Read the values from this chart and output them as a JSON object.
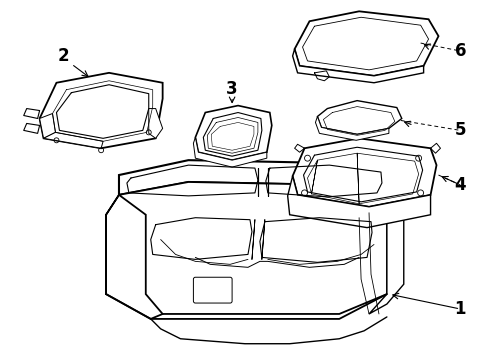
{
  "background_color": "#ffffff",
  "line_color": "#000000",
  "fig_width": 4.9,
  "fig_height": 3.6,
  "dpi": 100,
  "label_fontsize": 12,
  "label_fontweight": "bold"
}
